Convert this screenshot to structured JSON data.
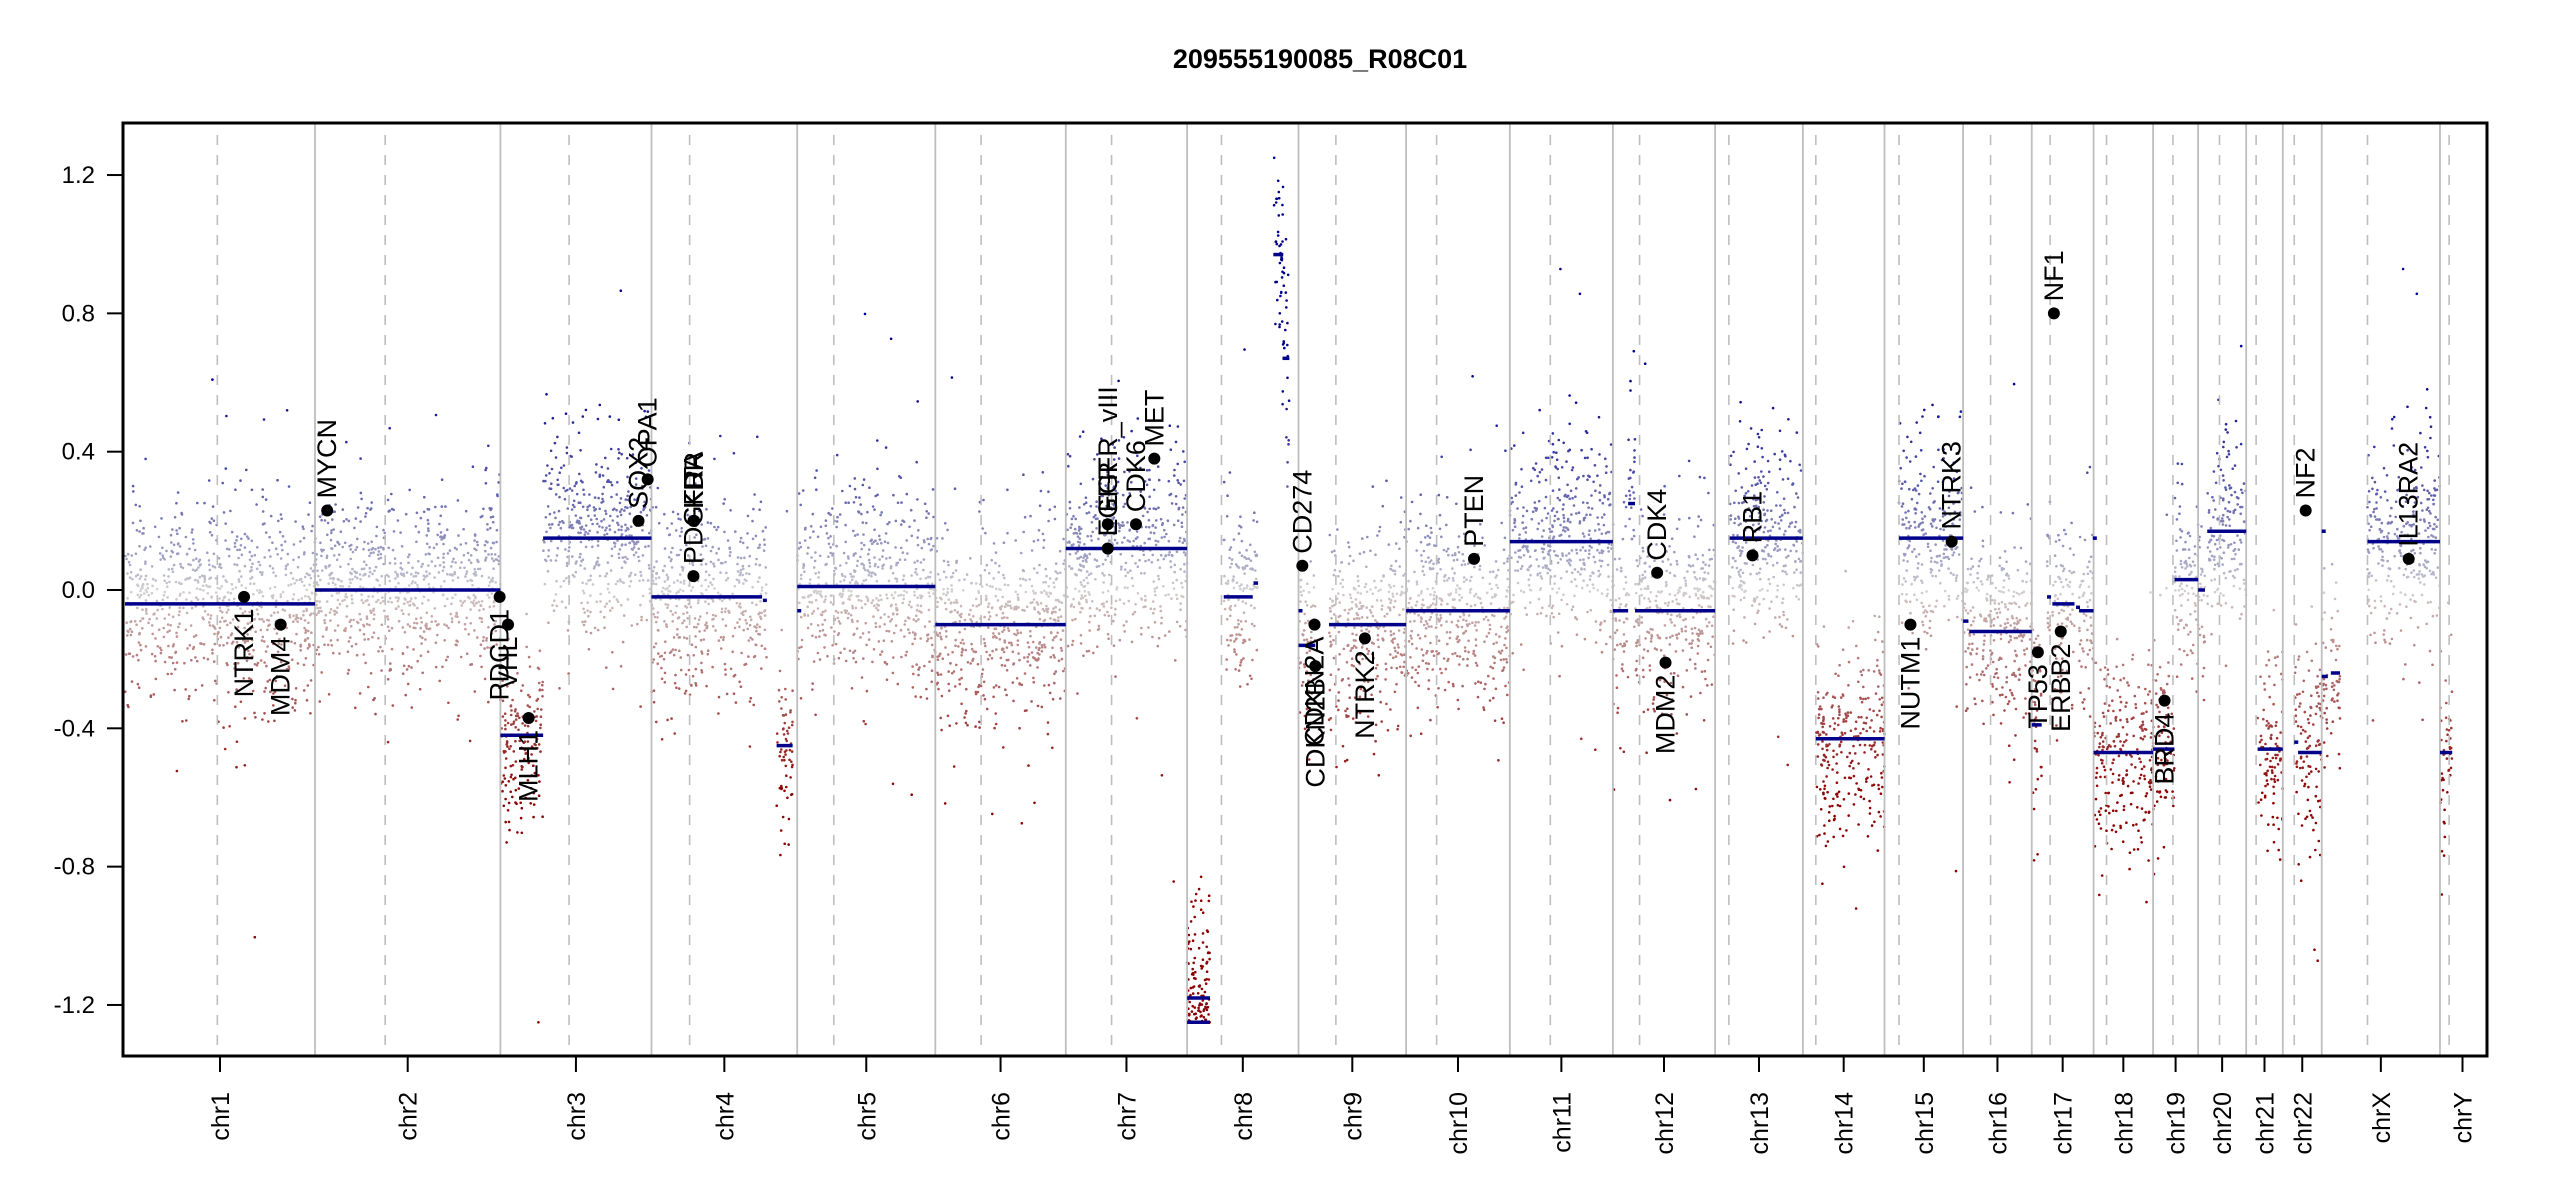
{
  "chart_data": {
    "type": "scatter",
    "title": "209555190085_R08C01",
    "xlabel": "",
    "ylabel": "",
    "ylim": [
      -1.35,
      1.35
    ],
    "yticks": [
      "1.2",
      "0.8",
      "0.4",
      "0.0",
      "-0.4",
      "-0.8",
      "-1.2"
    ],
    "ytick_values": [
      1.2,
      0.8,
      0.4,
      0.0,
      -0.4,
      -0.8,
      -1.2
    ],
    "grid": false,
    "legend": "none",
    "colors": {
      "segment": "#00008b",
      "gain": "#00008b",
      "neutral": "#d3d3d3",
      "loss": "#8b0000",
      "gene_point": "#000000",
      "chrom_boundary": "#bebebe",
      "centromere": "#bebebe"
    },
    "chromosomes": [
      {
        "name": "chr1",
        "length_mb": 249,
        "centromere_mb": 121
      },
      {
        "name": "chr2",
        "length_mb": 243,
        "centromere_mb": 92
      },
      {
        "name": "chr3",
        "length_mb": 198,
        "centromere_mb": 90
      },
      {
        "name": "chr4",
        "length_mb": 191,
        "centromere_mb": 50
      },
      {
        "name": "chr5",
        "length_mb": 181,
        "centromere_mb": 48
      },
      {
        "name": "chr6",
        "length_mb": 171,
        "centromere_mb": 60
      },
      {
        "name": "chr7",
        "length_mb": 159,
        "centromere_mb": 60
      },
      {
        "name": "chr8",
        "length_mb": 146,
        "centromere_mb": 45
      },
      {
        "name": "chr9",
        "length_mb": 141,
        "centromere_mb": 49
      },
      {
        "name": "chr10",
        "length_mb": 136,
        "centromere_mb": 40
      },
      {
        "name": "chr11",
        "length_mb": 135,
        "centromere_mb": 53
      },
      {
        "name": "chr12",
        "length_mb": 134,
        "centromere_mb": 35
      },
      {
        "name": "chr13",
        "length_mb": 115,
        "centromere_mb": 18
      },
      {
        "name": "chr14",
        "length_mb": 107,
        "centromere_mb": 17
      },
      {
        "name": "chr15",
        "length_mb": 103,
        "centromere_mb": 19
      },
      {
        "name": "chr16",
        "length_mb": 90,
        "centromere_mb": 36
      },
      {
        "name": "chr17",
        "length_mb": 81,
        "centromere_mb": 24
      },
      {
        "name": "chr18",
        "length_mb": 78,
        "centromere_mb": 17
      },
      {
        "name": "chr19",
        "length_mb": 59,
        "centromere_mb": 26
      },
      {
        "name": "chr20",
        "length_mb": 63,
        "centromere_mb": 28
      },
      {
        "name": "chr21",
        "length_mb": 48,
        "centromere_mb": 13
      },
      {
        "name": "chr22",
        "length_mb": 51,
        "centromere_mb": 15
      },
      {
        "name": "chrX",
        "length_mb": 155,
        "centromere_mb": 60
      },
      {
        "name": "chrY",
        "length_mb": 59,
        "centromere_mb": 12
      }
    ],
    "segments": [
      {
        "chr": "chr1",
        "start": 0,
        "end": 249,
        "value": -0.04
      },
      {
        "chr": "chr2",
        "start": 0,
        "end": 243,
        "value": 0.0
      },
      {
        "chr": "chr3",
        "start": 0,
        "end": 56,
        "value": -0.42
      },
      {
        "chr": "chr3",
        "start": 56,
        "end": 198,
        "value": 0.15
      },
      {
        "chr": "chr4",
        "start": 0,
        "end": 145,
        "value": -0.02
      },
      {
        "chr": "chr4",
        "start": 146,
        "end": 151,
        "value": -0.03
      },
      {
        "chr": "chr4",
        "start": 164,
        "end": 185,
        "value": -0.45
      },
      {
        "chr": "chr5",
        "start": 0,
        "end": 1,
        "value": -0.06
      },
      {
        "chr": "chr5",
        "start": 0,
        "end": 181,
        "value": 0.01
      },
      {
        "chr": "chr6",
        "start": 0,
        "end": 171,
        "value": -0.1
      },
      {
        "chr": "chr7",
        "start": 0,
        "end": 159,
        "value": 0.12
      },
      {
        "chr": "chr8",
        "start": 0,
        "end": 30,
        "value": -1.18
      },
      {
        "chr": "chr8",
        "start": 0,
        "end": 30,
        "value": -1.25
      },
      {
        "chr": "chr8",
        "start": 48,
        "end": 86,
        "value": -0.02
      },
      {
        "chr": "chr8",
        "start": 87,
        "end": 93,
        "value": 0.02
      },
      {
        "chr": "chr8",
        "start": 113,
        "end": 126,
        "value": 0.97
      },
      {
        "chr": "chr8",
        "start": 125,
        "end": 134,
        "value": 0.67
      },
      {
        "chr": "chr9",
        "start": 0,
        "end": 1,
        "value": -0.06
      },
      {
        "chr": "chr9",
        "start": 0,
        "end": 22,
        "value": -0.16
      },
      {
        "chr": "chr9",
        "start": 40,
        "end": 141,
        "value": -0.1
      },
      {
        "chr": "chr10",
        "start": 0,
        "end": 136,
        "value": -0.06
      },
      {
        "chr": "chr11",
        "start": 0,
        "end": 135,
        "value": 0.14
      },
      {
        "chr": "chr12",
        "start": 0,
        "end": 20,
        "value": -0.06
      },
      {
        "chr": "chr12",
        "start": 20,
        "end": 29,
        "value": 0.25
      },
      {
        "chr": "chr12",
        "start": 29,
        "end": 134,
        "value": -0.06
      },
      {
        "chr": "chr13",
        "start": 19,
        "end": 115,
        "value": 0.15
      },
      {
        "chr": "chr14",
        "start": 17,
        "end": 107,
        "value": -0.43
      },
      {
        "chr": "chr15",
        "start": 19,
        "end": 103,
        "value": 0.15
      },
      {
        "chr": "chr16",
        "start": 0,
        "end": 7,
        "value": -0.09
      },
      {
        "chr": "chr16",
        "start": 8,
        "end": 90,
        "value": -0.12
      },
      {
        "chr": "chr17",
        "start": 0,
        "end": 13,
        "value": -0.39
      },
      {
        "chr": "chr17",
        "start": 20,
        "end": 24,
        "value": -0.02
      },
      {
        "chr": "chr17",
        "start": 27,
        "end": 56,
        "value": -0.04
      },
      {
        "chr": "chr17",
        "start": 58,
        "end": 61,
        "value": -0.05
      },
      {
        "chr": "chr17",
        "start": 62,
        "end": 81,
        "value": -0.06
      },
      {
        "chr": "chr17",
        "start": 80,
        "end": 81,
        "value": 0.15
      },
      {
        "chr": "chr18",
        "start": 0,
        "end": 78,
        "value": -0.47
      },
      {
        "chr": "chr19",
        "start": 0,
        "end": 28,
        "value": -0.46
      },
      {
        "chr": "chr19",
        "start": 28,
        "end": 59,
        "value": 0.03
      },
      {
        "chr": "chr20",
        "start": 0,
        "end": 9,
        "value": 0.0
      },
      {
        "chr": "chr20",
        "start": 12,
        "end": 63,
        "value": 0.17
      },
      {
        "chr": "chr21",
        "start": 15,
        "end": 48,
        "value": -0.46
      },
      {
        "chr": "chr22",
        "start": 15,
        "end": 19,
        "value": -0.44
      },
      {
        "chr": "chr22",
        "start": 20,
        "end": 51,
        "value": -0.47
      },
      {
        "chr": "chrX",
        "start": 0,
        "end": 8,
        "value": -0.25
      },
      {
        "chr": "chrX",
        "start": 12,
        "end": 24,
        "value": -0.24
      },
      {
        "chr": "chrX",
        "start": 60,
        "end": 155,
        "value": 0.14
      },
      {
        "chr": "chrX",
        "start": 0,
        "end": 1,
        "value": 0.17
      },
      {
        "chr": "chrY",
        "start": 0,
        "end": 16,
        "value": -0.47
      }
    ],
    "genes": [
      {
        "name": "NTRK1",
        "chr": "chr1",
        "pos": 156,
        "value": -0.02,
        "label_side": "below"
      },
      {
        "name": "MDM4",
        "chr": "chr1",
        "pos": 204,
        "value": -0.1,
        "label_side": "below"
      },
      {
        "name": "MYCN",
        "chr": "chr2",
        "pos": 16,
        "value": 0.23,
        "label_side": "above"
      },
      {
        "name": "PDCD1",
        "chr": "chr2",
        "pos": 242,
        "value": -0.02,
        "label_side": "below"
      },
      {
        "name": "VHL",
        "chr": "chr3",
        "pos": 10,
        "value": -0.1,
        "label_side": "below"
      },
      {
        "name": "MLH1",
        "chr": "chr3",
        "pos": 37,
        "value": -0.37,
        "label_side": "below"
      },
      {
        "name": "SOX2",
        "chr": "chr3",
        "pos": 181,
        "value": 0.2,
        "label_side": "above"
      },
      {
        "name": "OPA1",
        "chr": "chr3",
        "pos": 193,
        "value": 0.32,
        "label_side": "above"
      },
      {
        "name": "PDGFRA",
        "chr": "chr4",
        "pos": 55,
        "value": 0.04,
        "label_side": "above"
      },
      {
        "name": "KIT",
        "chr": "chr4",
        "pos": 55,
        "value": 0.2,
        "label_side": "above"
      },
      {
        "name": "KDR",
        "chr": "chr4",
        "pos": 56,
        "value": 0.2,
        "label_side": "above"
      },
      {
        "name": "CDK6",
        "chr": "chr7",
        "pos": 92,
        "value": 0.19,
        "label_side": "above"
      },
      {
        "name": "EGFR",
        "chr": "chr7",
        "pos": 55,
        "value": 0.12,
        "label_side": "above"
      },
      {
        "name": "EGFR_vIII",
        "chr": "chr7",
        "pos": 55,
        "value": 0.19,
        "label_side": "above"
      },
      {
        "name": "MET",
        "chr": "chr7",
        "pos": 116,
        "value": 0.38,
        "label_side": "above"
      },
      {
        "name": "CD274",
        "chr": "chr9",
        "pos": 5,
        "value": 0.07,
        "label_side": "above"
      },
      {
        "name": "CDKN2A",
        "chr": "chr9",
        "pos": 21,
        "value": -0.1,
        "label_side": "below"
      },
      {
        "name": "CDKN2B",
        "chr": "chr9",
        "pos": 22,
        "value": -0.22,
        "label_side": "below"
      },
      {
        "name": "NTRK2",
        "chr": "chr9",
        "pos": 87,
        "value": -0.14,
        "label_side": "below"
      },
      {
        "name": "PTEN",
        "chr": "chr10",
        "pos": 89,
        "value": 0.09,
        "label_side": "above"
      },
      {
        "name": "CDK4",
        "chr": "chr12",
        "pos": 58,
        "value": 0.05,
        "label_side": "above"
      },
      {
        "name": "MDM2",
        "chr": "chr12",
        "pos": 69,
        "value": -0.21,
        "label_side": "below"
      },
      {
        "name": "RB1",
        "chr": "chr13",
        "pos": 49,
        "value": 0.1,
        "label_side": "above"
      },
      {
        "name": "NUTM1",
        "chr": "chr15",
        "pos": 34,
        "value": -0.1,
        "label_side": "below"
      },
      {
        "name": "NTRK3",
        "chr": "chr15",
        "pos": 88,
        "value": 0.14,
        "label_side": "above"
      },
      {
        "name": "TP53",
        "chr": "chr17",
        "pos": 8,
        "value": -0.18,
        "label_side": "below"
      },
      {
        "name": "NF1",
        "chr": "chr17",
        "pos": 29,
        "value": 0.8,
        "label_side": "above"
      },
      {
        "name": "ERBB2",
        "chr": "chr17",
        "pos": 38,
        "value": -0.12,
        "label_side": "below"
      },
      {
        "name": "BRD4",
        "chr": "chr19",
        "pos": 15,
        "value": -0.32,
        "label_side": "below"
      },
      {
        "name": "NF2",
        "chr": "chr22",
        "pos": 30,
        "value": 0.23,
        "label_side": "above"
      },
      {
        "name": "IL13RA2",
        "chr": "chrX",
        "pos": 114,
        "value": 0.09,
        "label_side": "above"
      }
    ]
  }
}
